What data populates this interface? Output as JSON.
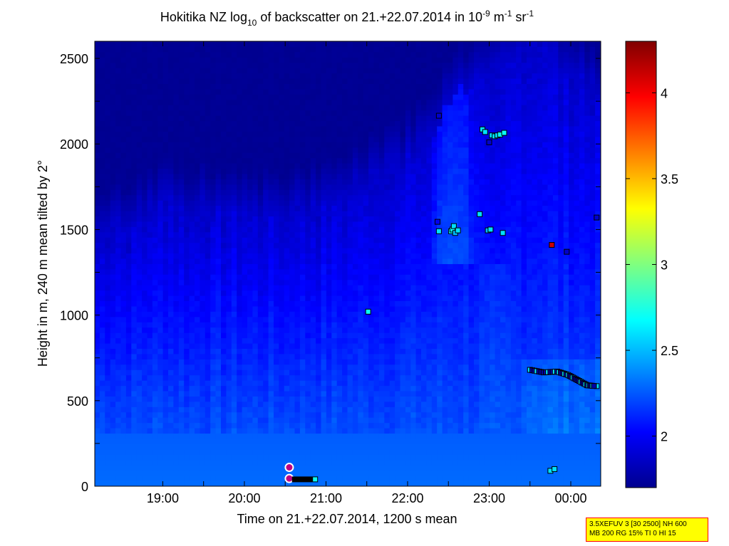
{
  "chart_data": {
    "type": "heatmap",
    "title_parts": {
      "t1": "Hokitika NZ log",
      "s1": "10",
      "t2": " of backscatter on 21.+22.07.2014 in 10",
      "s2": "-9",
      "t3": " m",
      "s3": "-1",
      "t4": " sr",
      "s4": "-1"
    },
    "xlabel": "Time on 21.+22.07.2014, 1200 s mean",
    "ylabel": "Height in m, 240 m mean tilted by 2°",
    "x_range": [
      "18:10",
      "00:22"
    ],
    "x_ticks": [
      "19:00",
      "20:00",
      "21:00",
      "22:00",
      "23:00",
      "00:00"
    ],
    "x_tick_hours": [
      19,
      20,
      21,
      22,
      23,
      24
    ],
    "ylim": [
      0,
      2600
    ],
    "y_ticks": [
      0,
      500,
      1000,
      1500,
      2000,
      2500
    ],
    "colorbar": {
      "colormap": "jet",
      "range": [
        1.7,
        4.3
      ],
      "ticks": [
        2,
        2.5,
        3,
        3.5,
        4
      ],
      "tick_labels": [
        "2",
        "2.5",
        "3",
        "3.5",
        "4"
      ]
    },
    "field_description": {
      "surface_layer_value": 2.3,
      "free_troposphere_value": 1.75,
      "mixed_layer_top_m": [
        {
          "time": "18:10",
          "height": 1450
        },
        {
          "time": "19:00",
          "height": 1650
        },
        {
          "time": "20:00",
          "height": 1550
        },
        {
          "time": "21:00",
          "height": 1650
        },
        {
          "time": "22:00",
          "height": 1900
        },
        {
          "time": "22:40",
          "height": 2300
        },
        {
          "time": "23:00",
          "height": 2450
        },
        {
          "time": "23:30",
          "height": 2600
        },
        {
          "time": "00:22",
          "height": 2300
        }
      ]
    },
    "markers": [
      {
        "time": "20:33",
        "height": 110,
        "kind": "ring"
      },
      {
        "time": "20:33",
        "height": 45,
        "kind": "ring"
      },
      {
        "time": "20:35",
        "height": 40,
        "kind": "black_run_end",
        "until": "20:50"
      },
      {
        "time": "20:52",
        "height": 40,
        "value": 2.7
      },
      {
        "time": "21:31",
        "height": 1020,
        "value": 2.7
      },
      {
        "time": "22:23",
        "height": 2165,
        "value": 1.9
      },
      {
        "time": "22:22",
        "height": 1545,
        "value": 2.0
      },
      {
        "time": "22:23",
        "height": 1490,
        "value": 2.6
      },
      {
        "time": "22:32",
        "height": 1490,
        "value": 2.7
      },
      {
        "time": "22:33",
        "height": 1500,
        "value": 2.7
      },
      {
        "time": "22:34",
        "height": 1520,
        "value": 2.6
      },
      {
        "time": "22:35",
        "height": 1480,
        "value": 2.5
      },
      {
        "time": "22:37",
        "height": 1495,
        "value": 2.6
      },
      {
        "time": "22:53",
        "height": 1590,
        "value": 2.6
      },
      {
        "time": "22:59",
        "height": 1495,
        "value": 2.5
      },
      {
        "time": "23:01",
        "height": 1500,
        "value": 2.6
      },
      {
        "time": "23:10",
        "height": 1480,
        "value": 2.6
      },
      {
        "time": "22:55",
        "height": 2085,
        "value": 2.6
      },
      {
        "time": "22:57",
        "height": 2070,
        "value": 2.6
      },
      {
        "time": "23:00",
        "height": 2010,
        "value": 1.9
      },
      {
        "time": "23:02",
        "height": 2050,
        "value": 2.6
      },
      {
        "time": "23:04",
        "height": 2045,
        "value": 2.6
      },
      {
        "time": "23:06",
        "height": 2050,
        "value": 2.6
      },
      {
        "time": "23:08",
        "height": 2055,
        "value": 2.7
      },
      {
        "time": "23:11",
        "height": 2065,
        "value": 2.7
      },
      {
        "time": "23:46",
        "height": 1410,
        "value": 4.1
      },
      {
        "time": "23:57",
        "height": 1370,
        "value": 1.9
      },
      {
        "time": "00:19",
        "height": 1570,
        "value": 1.9
      },
      {
        "time": "23:45",
        "height": 90,
        "value": 2.6
      },
      {
        "time": "23:48",
        "height": 100,
        "value": 2.6
      },
      {
        "time": "00:19",
        "height": 585,
        "value": 2.6
      }
    ],
    "marker_line": [
      {
        "time": "23:30",
        "height": 680
      },
      {
        "time": "23:40",
        "height": 665
      },
      {
        "time": "23:50",
        "height": 670
      },
      {
        "time": "23:58",
        "height": 650
      },
      {
        "time": "00:05",
        "height": 620
      },
      {
        "time": "00:12",
        "height": 590
      },
      {
        "time": "00:18",
        "height": 585
      }
    ]
  },
  "stamp": {
    "line1": "3.5XEFUV 3 [30 2500] NH 600",
    "line2": "MB 200 RG 15% TI 0 HI 15"
  }
}
